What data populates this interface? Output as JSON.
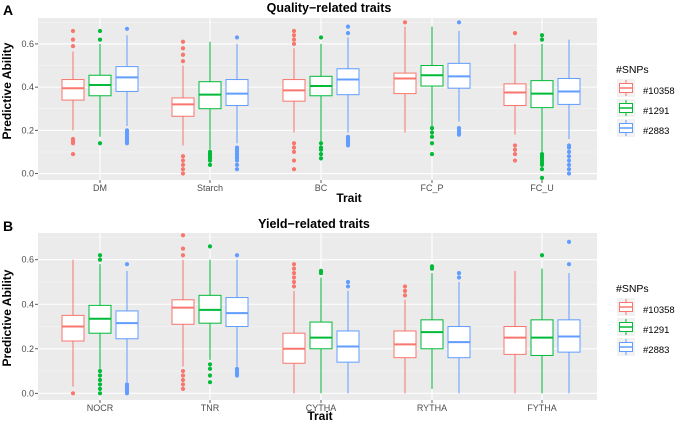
{
  "chart_data": [
    {
      "type": "box",
      "panel_label": "A",
      "title": "Quality−related traits",
      "xlabel": "Trait",
      "ylabel": "Predictive Ability",
      "ylim": [
        -0.03,
        0.72
      ],
      "yticks": [
        "0.0",
        "0.2",
        "0.4",
        "0.6"
      ],
      "categories": [
        "DM",
        "Starch",
        "BC",
        "FC_P",
        "FC_U"
      ],
      "legend": {
        "title": "#SNPs",
        "position": "right",
        "entries": [
          "#10358",
          "#1291",
          "#2883"
        ]
      },
      "series": [
        {
          "name": "#10358",
          "color": "#F8766D",
          "boxes": [
            {
              "q1": 0.34,
              "median": 0.395,
              "q3": 0.435,
              "whisker_low": 0.2,
              "whisker_high": 0.565,
              "outliers": [
                0.09,
                0.14,
                0.15,
                0.16,
                0.59,
                0.62,
                0.66
              ]
            },
            {
              "q1": 0.265,
              "median": 0.32,
              "q3": 0.35,
              "whisker_low": 0.13,
              "whisker_high": 0.5,
              "outliers": [
                0.0,
                0.02,
                0.04,
                0.06,
                0.08,
                0.52,
                0.55,
                0.58,
                0.61
              ]
            },
            {
              "q1": 0.335,
              "median": 0.385,
              "q3": 0.435,
              "whisker_low": 0.19,
              "whisker_high": 0.58,
              "outliers": [
                0.02,
                0.06,
                0.1,
                0.12,
                0.14,
                0.6,
                0.62,
                0.64,
                0.66
              ]
            },
            {
              "q1": 0.37,
              "median": 0.44,
              "q3": 0.465,
              "whisker_low": 0.19,
              "whisker_high": 0.68,
              "outliers": [
                0.7
              ]
            },
            {
              "q1": 0.315,
              "median": 0.375,
              "q3": 0.415,
              "whisker_low": 0.18,
              "whisker_high": 0.6,
              "outliers": [
                0.06,
                0.09,
                0.11,
                0.13,
                0.65
              ]
            }
          ]
        },
        {
          "name": "#1291",
          "color": "#00BA38",
          "boxes": [
            {
              "q1": 0.36,
              "median": 0.41,
              "q3": 0.455,
              "whisker_low": 0.17,
              "whisker_high": 0.6,
              "outliers": [
                0.14,
                0.62,
                0.66
              ]
            },
            {
              "q1": 0.3,
              "median": 0.365,
              "q3": 0.425,
              "whisker_low": 0.11,
              "whisker_high": 0.61,
              "outliers": [
                0.04,
                0.06,
                0.07,
                0.08,
                0.09,
                0.1
              ]
            },
            {
              "q1": 0.36,
              "median": 0.405,
              "q3": 0.45,
              "whisker_low": 0.15,
              "whisker_high": 0.6,
              "outliers": [
                0.07,
                0.09,
                0.11,
                0.12,
                0.14,
                0.63
              ]
            },
            {
              "q1": 0.405,
              "median": 0.455,
              "q3": 0.5,
              "whisker_low": 0.22,
              "whisker_high": 0.68,
              "outliers": [
                0.09,
                0.14,
                0.17,
                0.19,
                0.21
              ]
            },
            {
              "q1": 0.305,
              "median": 0.37,
              "q3": 0.43,
              "whisker_low": 0.1,
              "whisker_high": 0.6,
              "outliers": [
                -0.02,
                0.02,
                0.04,
                0.05,
                0.06,
                0.07,
                0.08,
                0.09,
                0.62,
                0.64
              ]
            }
          ]
        },
        {
          "name": "#2883",
          "color": "#619CFF",
          "boxes": [
            {
              "q1": 0.38,
              "median": 0.445,
              "q3": 0.495,
              "whisker_low": 0.22,
              "whisker_high": 0.64,
              "outliers": [
                0.14,
                0.15,
                0.16,
                0.17,
                0.18,
                0.19,
                0.2,
                0.67
              ]
            },
            {
              "q1": 0.315,
              "median": 0.37,
              "q3": 0.435,
              "whisker_low": 0.14,
              "whisker_high": 0.6,
              "outliers": [
                0.02,
                0.04,
                0.06,
                0.07,
                0.08,
                0.09,
                0.1,
                0.11,
                0.12,
                0.63
              ]
            },
            {
              "q1": 0.365,
              "median": 0.435,
              "q3": 0.485,
              "whisker_low": 0.19,
              "whisker_high": 0.63,
              "outliers": [
                0.13,
                0.14,
                0.15,
                0.16,
                0.17,
                0.65,
                0.68
              ]
            },
            {
              "q1": 0.395,
              "median": 0.45,
              "q3": 0.51,
              "whisker_low": 0.24,
              "whisker_high": 0.66,
              "outliers": [
                0.18,
                0.19,
                0.2,
                0.21,
                0.7
              ]
            },
            {
              "q1": 0.32,
              "median": 0.38,
              "q3": 0.44,
              "whisker_low": 0.16,
              "whisker_high": 0.62,
              "outliers": [
                0.0,
                0.02,
                0.04,
                0.06,
                0.08,
                0.1,
                0.12,
                0.13
              ]
            }
          ]
        }
      ]
    },
    {
      "type": "box",
      "panel_label": "B",
      "title": "Yield−related traits",
      "xlabel": "Trait",
      "ylabel": "Predictive Ability",
      "ylim": [
        -0.03,
        0.72
      ],
      "yticks": [
        "0.0",
        "0.2",
        "0.4",
        "0.6"
      ],
      "categories": [
        "NOCR",
        "TNR",
        "CYTHA",
        "RYTHA",
        "FYTHA"
      ],
      "legend": {
        "title": "#SNPs",
        "position": "right",
        "entries": [
          "#10358",
          "#1291",
          "#2883"
        ]
      },
      "series": [
        {
          "name": "#10358",
          "color": "#F8766D",
          "boxes": [
            {
              "q1": 0.235,
              "median": 0.3,
              "q3": 0.35,
              "whisker_low": 0.03,
              "whisker_high": 0.6,
              "outliers": [
                0.0
              ]
            },
            {
              "q1": 0.31,
              "median": 0.385,
              "q3": 0.42,
              "whisker_low": 0.12,
              "whisker_high": 0.6,
              "outliers": [
                0.02,
                0.04,
                0.06,
                0.08,
                0.1,
                0.62,
                0.65,
                0.71
              ]
            },
            {
              "q1": 0.135,
              "median": 0.2,
              "q3": 0.27,
              "whisker_low": 0.0,
              "whisker_high": 0.46,
              "outliers": [
                0.48,
                0.5,
                0.52,
                0.54,
                0.56,
                0.58
              ]
            },
            {
              "q1": 0.16,
              "median": 0.22,
              "q3": 0.28,
              "whisker_low": 0.0,
              "whisker_high": 0.42,
              "outliers": [
                0.44,
                0.46,
                0.48
              ]
            },
            {
              "q1": 0.175,
              "median": 0.25,
              "q3": 0.3,
              "whisker_low": 0.0,
              "whisker_high": 0.55,
              "outliers": []
            }
          ]
        },
        {
          "name": "#1291",
          "color": "#00BA38",
          "boxes": [
            {
              "q1": 0.27,
              "median": 0.335,
              "q3": 0.395,
              "whisker_low": 0.11,
              "whisker_high": 0.58,
              "outliers": [
                0.0,
                0.02,
                0.04,
                0.06,
                0.08,
                0.1,
                0.6,
                0.62
              ]
            },
            {
              "q1": 0.315,
              "median": 0.375,
              "q3": 0.44,
              "whisker_low": 0.15,
              "whisker_high": 0.6,
              "outliers": [
                0.05,
                0.08,
                0.11,
                0.13,
                0.66
              ]
            },
            {
              "q1": 0.2,
              "median": 0.25,
              "q3": 0.32,
              "whisker_low": 0.0,
              "whisker_high": 0.52,
              "outliers": [
                0.54,
                0.55
              ]
            },
            {
              "q1": 0.2,
              "median": 0.275,
              "q3": 0.33,
              "whisker_low": 0.02,
              "whisker_high": 0.54,
              "outliers": [
                0.56,
                0.57
              ]
            },
            {
              "q1": 0.17,
              "median": 0.25,
              "q3": 0.33,
              "whisker_low": 0.0,
              "whisker_high": 0.56,
              "outliers": [
                0.62
              ]
            }
          ]
        },
        {
          "name": "#2883",
          "color": "#619CFF",
          "boxes": [
            {
              "q1": 0.245,
              "median": 0.315,
              "q3": 0.37,
              "whisker_low": 0.05,
              "whisker_high": 0.55,
              "outliers": [
                0.0,
                0.01,
                0.02,
                0.03,
                0.04,
                0.58
              ]
            },
            {
              "q1": 0.3,
              "median": 0.36,
              "q3": 0.43,
              "whisker_low": 0.12,
              "whisker_high": 0.6,
              "outliers": [
                0.08,
                0.09,
                0.1,
                0.11,
                0.62
              ]
            },
            {
              "q1": 0.14,
              "median": 0.21,
              "q3": 0.28,
              "whisker_low": 0.0,
              "whisker_high": 0.46,
              "outliers": [
                0.48,
                0.5
              ]
            },
            {
              "q1": 0.16,
              "median": 0.23,
              "q3": 0.3,
              "whisker_low": 0.0,
              "whisker_high": 0.5,
              "outliers": [
                0.52,
                0.54
              ]
            },
            {
              "q1": 0.185,
              "median": 0.255,
              "q3": 0.33,
              "whisker_low": 0.0,
              "whisker_high": 0.54,
              "outliers": [
                0.58,
                0.68
              ]
            }
          ]
        }
      ]
    }
  ]
}
